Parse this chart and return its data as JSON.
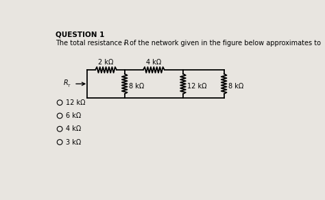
{
  "background_color": "#e8e5e0",
  "question_title": "QUESTION 1",
  "choices": [
    "12 kΩ",
    "6 kΩ",
    "4 kΩ",
    "3 kΩ"
  ],
  "resistors": {
    "R1_label": "2 kΩ",
    "R2_label": "8 kΩ",
    "R3_label": "4 kΩ",
    "R4_label": "12 kΩ",
    "R5_label": "8 kΩ"
  }
}
